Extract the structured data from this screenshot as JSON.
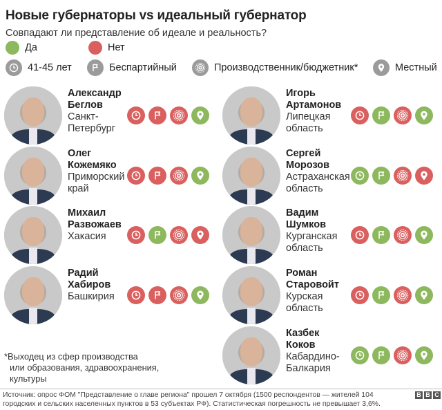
{
  "title": "Новые губернаторы vs идеальный губернатор",
  "subtitle": "Совпадают ли представление об идеале и реальность?",
  "colors": {
    "yes": "#8db85e",
    "no": "#d9605f",
    "neutral": "#9b9b9b"
  },
  "legend": {
    "answers": [
      {
        "label": "Да",
        "color": "#8db85e"
      },
      {
        "label": "Нет",
        "color": "#d9605f"
      }
    ],
    "criteria": [
      {
        "icon": "clock-icon",
        "label": "41-45 лет"
      },
      {
        "icon": "flag-icon",
        "label": "Беспартийный"
      },
      {
        "icon": "gear-plus-icon",
        "label": "Производственник/бюджетник*"
      },
      {
        "icon": "location-pin-icon",
        "label": "Местный"
      }
    ]
  },
  "governors": [
    {
      "first": "Александр",
      "last": "Беглов",
      "region1": "Санкт-",
      "region2": "Петербург",
      "age": "no",
      "nonparty": "no",
      "production": "no",
      "local": "yes"
    },
    {
      "first": "Олег",
      "last": "Кожемяко",
      "region1": "Приморский",
      "region2": "край",
      "age": "no",
      "nonparty": "no",
      "production": "no",
      "local": "yes"
    },
    {
      "first": "Михаил",
      "last": "Развожаев",
      "region1": "Хакасия",
      "region2": "",
      "age": "no",
      "nonparty": "yes",
      "production": "no",
      "local": "no"
    },
    {
      "first": "Радий",
      "last": "Хабиров",
      "region1": "Башкирия",
      "region2": "",
      "age": "no",
      "nonparty": "no",
      "production": "no",
      "local": "yes"
    },
    {
      "first": "Игорь",
      "last": "Артамонов",
      "region1": "Липецкая",
      "region2": "область",
      "age": "no",
      "nonparty": "yes",
      "production": "no",
      "local": "yes"
    },
    {
      "first": "Сергей",
      "last": "Морозов",
      "region1": "Астраханская",
      "region2": "область",
      "age": "yes",
      "nonparty": "yes",
      "production": "no",
      "local": "no"
    },
    {
      "first": "Вадим",
      "last": "Шумков",
      "region1": "Курганская",
      "region2": "область",
      "age": "no",
      "nonparty": "yes",
      "production": "no",
      "local": "yes"
    },
    {
      "first": "Роман",
      "last": "Старовойт",
      "region1": "Курская",
      "region2": "область",
      "age": "no",
      "nonparty": "yes",
      "production": "no",
      "local": "yes"
    },
    {
      "first": "Казбек",
      "last": "Коков",
      "region1": "Кабардино-",
      "region2": "Балкария",
      "age": "yes",
      "nonparty": "yes",
      "production": "no",
      "local": "yes"
    }
  ],
  "footnote": {
    "line1": "*Выходец из сфер производства",
    "line2": "или образования, здравоохранения,",
    "line3": "культуры"
  },
  "source": "Источник: опрос ФОМ \"Представление о главе региона\" прошел 7 октября (1500 респондентов — жителей 104 городских и сельских населенных пунктов в 53 субъектах РФ). Статистическая погрешность не превышает 3,6%.",
  "logo": [
    "B",
    "B",
    "C"
  ]
}
